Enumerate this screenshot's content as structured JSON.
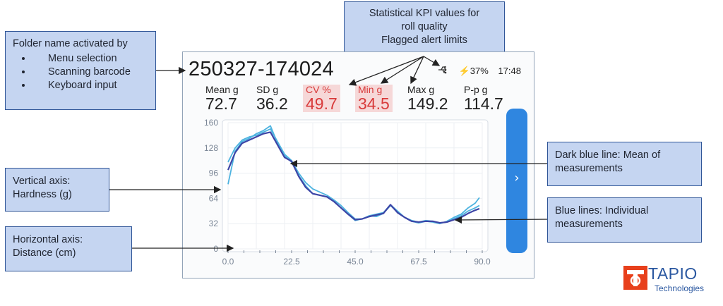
{
  "callouts": {
    "folder": {
      "title": "Folder name activated by",
      "bullets": [
        "Menu selection",
        "Scanning barcode",
        "Keyboard input"
      ]
    },
    "kpi": {
      "line1": "Statistical KPI values for",
      "line2": "roll quality",
      "line3": "Flagged alert limits"
    },
    "vertical_axis": {
      "line1": "Vertical axis:",
      "line2": "Hardness (g)"
    },
    "horizontal_axis": {
      "line1": "Horizontal axis:",
      "line2": "Distance (cm)"
    },
    "dark_blue": {
      "line1": "Dark blue line: Mean of",
      "line2": "measurements"
    },
    "blue_lines": {
      "line1": "Blue lines: Individual",
      "line2": "measurements"
    }
  },
  "device": {
    "folder_name": "250327-174024",
    "status": {
      "usb_icon": "usb-icon",
      "battery": "37%",
      "time": "17:48"
    },
    "kpis": [
      {
        "label": "Mean g",
        "value": "72.7",
        "alert": false
      },
      {
        "label": "SD g",
        "value": "36.2",
        "alert": false
      },
      {
        "label": "CV %",
        "value": "49.7",
        "alert": true
      },
      {
        "label": "Min g",
        "value": "34.5",
        "alert": true
      },
      {
        "label": "Max g",
        "value": "149.2",
        "alert": false
      },
      {
        "label": "P-p g",
        "value": "114.7",
        "alert": false
      }
    ],
    "next_button_icon": "chevron-right-icon"
  },
  "chart_data": {
    "type": "line",
    "title": "",
    "xlabel": "",
    "ylabel": "",
    "xlim": [
      0,
      90
    ],
    "ylim": [
      0,
      160
    ],
    "x_ticks": [
      "0.0",
      "22.5",
      "45.0",
      "67.5",
      "90.0"
    ],
    "y_ticks": [
      "0",
      "32",
      "64",
      "96",
      "128",
      "160"
    ],
    "grid": true,
    "x": [
      0,
      2.5,
      5,
      7.5,
      10,
      12.5,
      15,
      17.5,
      20,
      22.5,
      25,
      27.5,
      30,
      32.5,
      35,
      37.5,
      40,
      42.5,
      45,
      47.5,
      50,
      52.5,
      55,
      57.5,
      60,
      62.5,
      65,
      67.5,
      70,
      72.5,
      75,
      77.5,
      80,
      82.5,
      85,
      87.5,
      89
    ],
    "series": [
      {
        "color": "#4db3e0",
        "values": [
          82,
          124,
          136,
          140,
          146,
          150,
          156,
          134,
          118,
          110,
          93,
          80,
          70,
          68,
          66,
          60,
          52,
          44,
          36,
          38,
          42,
          41,
          45,
          55,
          47,
          40,
          35,
          33,
          35,
          34,
          32,
          35,
          40,
          44,
          52,
          58,
          65
        ]
      },
      {
        "color": "#4db3e0",
        "values": [
          110,
          128,
          138,
          142,
          144,
          148,
          152,
          136,
          120,
          112,
          96,
          84,
          76,
          72,
          68,
          62,
          55,
          46,
          38,
          38,
          42,
          44,
          46,
          56,
          48,
          40,
          36,
          34,
          36,
          35,
          33,
          34,
          38,
          42,
          48,
          52,
          55
        ]
      },
      {
        "color": "#3d45a6",
        "values": [
          100,
          122,
          134,
          138,
          142,
          146,
          148,
          132,
          116,
          111,
          92,
          78,
          70,
          68,
          66,
          60,
          52,
          44,
          37,
          38,
          41,
          43,
          45,
          56,
          46,
          40,
          35,
          34,
          35,
          35,
          33,
          34,
          37,
          40,
          45,
          49,
          51
        ]
      }
    ]
  }
}
